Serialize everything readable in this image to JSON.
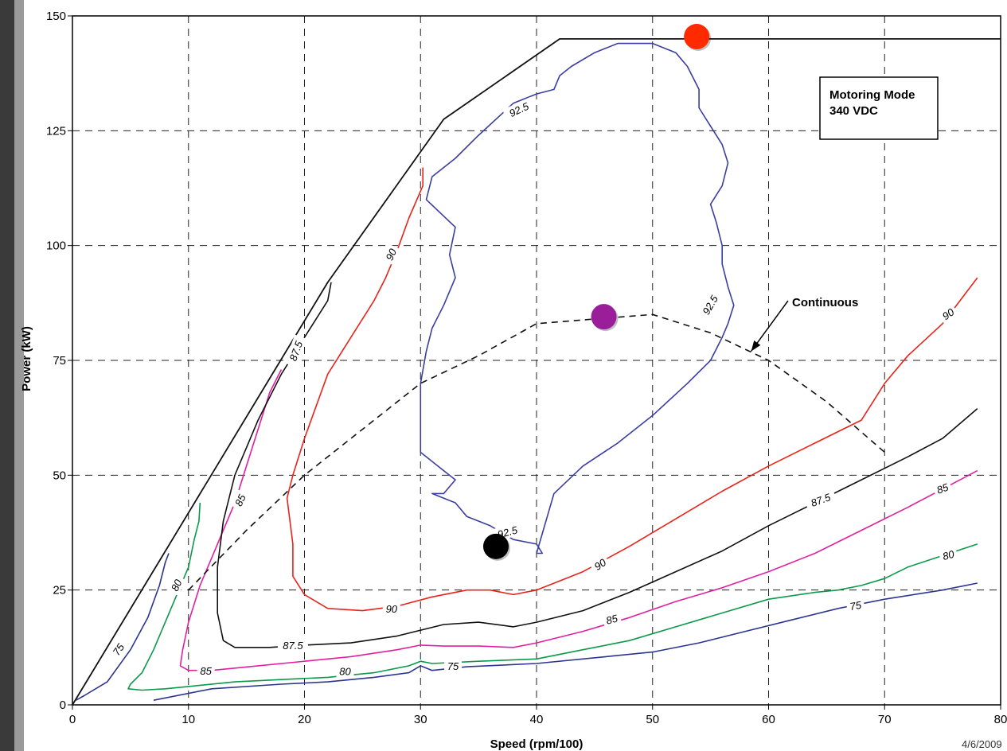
{
  "chart_data": {
    "type": "line",
    "title": "",
    "xlabel": "Speed (rpm/100)",
    "ylabel": "Power (kW)",
    "xlim": [
      0,
      80
    ],
    "ylim": [
      0,
      150
    ],
    "x_ticks": [
      0,
      10,
      20,
      30,
      40,
      50,
      60,
      70,
      80
    ],
    "y_ticks": [
      0,
      25,
      50,
      75,
      100,
      125,
      150
    ],
    "grid": true,
    "grid_style": "dashed",
    "legend_box": {
      "lines": [
        "Motoring Mode",
        "340 VDC"
      ],
      "placement": "top-right"
    },
    "annotation": {
      "text": "Continuous",
      "arrow_to": [
        58.5,
        77
      ]
    },
    "date": "4/6/2009",
    "colors": {
      "75": "#2b3590",
      "80": "#0a9a4a",
      "85": "#e020a0",
      "87.5": "#111111",
      "90": "#e8231a",
      "92.5": "#3a3ea0",
      "envelope": "#111111",
      "continuous": "#111111",
      "marker_red": "#ff2a00",
      "marker_purple": "#9a1d9a",
      "marker_black": "#000000"
    },
    "series": [
      {
        "name": "envelope",
        "style": "solid",
        "color_key": "envelope",
        "points": [
          [
            0,
            0
          ],
          [
            22,
            92
          ],
          [
            32,
            127.5
          ],
          [
            42,
            145
          ],
          [
            80,
            145
          ]
        ]
      },
      {
        "name": "75",
        "style": "solid",
        "color_key": "75",
        "points": [
          [
            0.3,
            1
          ],
          [
            1,
            2
          ],
          [
            3,
            5
          ],
          [
            5,
            12
          ],
          [
            6.5,
            19
          ],
          [
            7.5,
            26
          ],
          [
            8,
            31
          ],
          [
            8.3,
            33
          ],
          [
            null,
            null
          ],
          [
            7,
            1
          ],
          [
            12,
            3.5
          ],
          [
            18,
            4.5
          ],
          [
            22,
            5
          ],
          [
            26,
            6
          ],
          [
            29,
            7
          ],
          [
            30,
            8.5
          ],
          [
            31,
            7.5
          ],
          [
            34,
            8.3
          ],
          [
            40,
            9
          ],
          [
            46,
            10.5
          ],
          [
            50,
            11.5
          ],
          [
            54,
            13.5
          ],
          [
            58,
            16
          ],
          [
            62,
            18.5
          ],
          [
            66,
            21
          ],
          [
            70,
            23
          ],
          [
            75,
            25
          ],
          [
            78,
            26.5
          ]
        ],
        "labels": [
          {
            "text": "75",
            "x": 4,
            "y": 12,
            "angle": -55
          },
          {
            "text": "75",
            "x": 32.8,
            "y": 8.3,
            "angle": 0
          },
          {
            "text": "75",
            "x": 67.5,
            "y": 21.5,
            "angle": -10
          }
        ]
      },
      {
        "name": "80",
        "style": "solid",
        "color_key": "80",
        "points": [
          [
            11,
            44
          ],
          [
            10.9,
            40
          ],
          [
            10.5,
            36
          ],
          [
            10,
            30
          ],
          [
            9,
            24
          ],
          [
            8,
            18
          ],
          [
            7,
            12
          ],
          [
            6,
            7
          ],
          [
            5,
            4.5
          ],
          [
            4.8,
            3.5
          ],
          [
            6,
            3.2
          ],
          [
            8,
            3.5
          ],
          [
            10,
            4
          ],
          [
            14,
            5
          ],
          [
            18,
            5.5
          ],
          [
            22,
            6
          ],
          [
            26,
            7
          ],
          [
            29,
            8.5
          ],
          [
            30,
            9.5
          ],
          [
            31,
            9
          ],
          [
            35,
            9.5
          ],
          [
            40,
            10
          ],
          [
            44,
            12
          ],
          [
            48,
            14
          ],
          [
            52,
            17
          ],
          [
            56,
            20
          ],
          [
            60,
            23
          ],
          [
            64,
            24.5
          ],
          [
            66,
            25
          ],
          [
            68,
            26
          ],
          [
            70,
            27.5
          ],
          [
            72,
            30
          ],
          [
            75,
            32.5
          ],
          [
            78,
            35
          ]
        ],
        "labels": [
          {
            "text": "80",
            "x": 9,
            "y": 26,
            "angle": -65
          },
          {
            "text": "80",
            "x": 23.5,
            "y": 7.2,
            "angle": 0
          },
          {
            "text": "80",
            "x": 75.5,
            "y": 32.5,
            "angle": -15
          }
        ]
      },
      {
        "name": "85",
        "style": "solid",
        "color_key": "85",
        "points": [
          [
            18,
            73
          ],
          [
            17,
            68
          ],
          [
            16,
            60
          ],
          [
            15,
            52
          ],
          [
            14,
            44
          ],
          [
            13,
            38
          ],
          [
            12,
            32
          ],
          [
            11,
            26
          ],
          [
            10,
            18
          ],
          [
            9.5,
            12
          ],
          [
            9.3,
            8.5
          ],
          [
            10,
            7.5
          ],
          [
            12,
            7.5
          ],
          [
            16,
            8.5
          ],
          [
            20,
            9.5
          ],
          [
            24,
            10.5
          ],
          [
            28,
            12
          ],
          [
            30,
            13
          ],
          [
            32,
            12.8
          ],
          [
            35,
            12.8
          ],
          [
            38,
            12.5
          ],
          [
            40,
            13.5
          ],
          [
            44,
            16
          ],
          [
            48,
            19
          ],
          [
            52,
            22.5
          ],
          [
            56,
            25.5
          ],
          [
            60,
            29
          ],
          [
            64,
            33
          ],
          [
            68,
            38
          ],
          [
            72,
            43
          ],
          [
            75,
            47
          ],
          [
            78,
            51
          ]
        ],
        "labels": [
          {
            "text": "85",
            "x": 14.5,
            "y": 44.5,
            "angle": -65
          },
          {
            "text": "85",
            "x": 11.5,
            "y": 7.3,
            "angle": 0
          },
          {
            "text": "85",
            "x": 46.5,
            "y": 18.5,
            "angle": -15
          },
          {
            "text": "85",
            "x": 75,
            "y": 47,
            "angle": -20
          }
        ]
      },
      {
        "name": "87.5",
        "style": "solid",
        "color_key": "87.5",
        "points": [
          [
            22.3,
            92
          ],
          [
            22,
            88
          ],
          [
            20,
            80
          ],
          [
            18,
            72
          ],
          [
            16,
            62
          ],
          [
            14,
            50
          ],
          [
            13,
            40
          ],
          [
            12.5,
            30
          ],
          [
            12.5,
            20
          ],
          [
            13,
            14
          ],
          [
            14,
            12.5
          ],
          [
            17,
            12.5
          ],
          [
            20,
            13
          ],
          [
            24,
            13.5
          ],
          [
            28,
            15
          ],
          [
            32,
            17.5
          ],
          [
            35,
            18
          ],
          [
            38,
            17
          ],
          [
            40,
            18
          ],
          [
            44,
            20.5
          ],
          [
            48,
            24.5
          ],
          [
            52,
            29
          ],
          [
            56,
            33.5
          ],
          [
            60,
            39
          ],
          [
            64,
            44
          ],
          [
            68,
            49
          ],
          [
            72,
            54
          ],
          [
            75,
            58
          ],
          [
            78,
            64.5
          ]
        ],
        "labels": [
          {
            "text": "87.5",
            "x": 19.3,
            "y": 77,
            "angle": -70
          },
          {
            "text": "87.5",
            "x": 19,
            "y": 12.8,
            "angle": 0
          },
          {
            "text": "87.5",
            "x": 64.5,
            "y": 44.5,
            "angle": -20
          }
        ]
      },
      {
        "name": "90",
        "style": "solid",
        "color_key": "90",
        "points": [
          [
            30.2,
            117
          ],
          [
            30.2,
            113
          ],
          [
            29,
            106
          ],
          [
            28,
            99
          ],
          [
            27,
            93
          ],
          [
            26,
            88
          ],
          [
            24,
            80
          ],
          [
            22,
            72
          ],
          [
            21,
            65
          ],
          [
            20,
            58
          ],
          [
            19,
            50
          ],
          [
            18.5,
            45
          ],
          [
            19,
            35
          ],
          [
            19,
            28
          ],
          [
            20,
            24
          ],
          [
            22,
            21
          ],
          [
            25,
            20.5
          ],
          [
            28,
            21.5
          ],
          [
            31,
            23.5
          ],
          [
            34,
            25
          ],
          [
            36,
            25
          ],
          [
            38,
            24
          ],
          [
            40,
            25
          ],
          [
            44,
            29
          ],
          [
            48,
            34.5
          ],
          [
            52,
            40.5
          ],
          [
            56,
            46.5
          ],
          [
            60,
            52
          ],
          [
            64,
            57
          ],
          [
            68,
            62
          ],
          [
            70,
            70
          ],
          [
            72,
            76
          ],
          [
            75,
            83
          ],
          [
            78,
            93
          ]
        ],
        "labels": [
          {
            "text": "90",
            "x": 27.5,
            "y": 98,
            "angle": -65
          },
          {
            "text": "90",
            "x": 27.5,
            "y": 20.8,
            "angle": 0
          },
          {
            "text": "90",
            "x": 45.5,
            "y": 30.5,
            "angle": -35
          },
          {
            "text": "90",
            "x": 75.5,
            "y": 85,
            "angle": -35
          }
        ]
      },
      {
        "name": "92.5",
        "style": "solid",
        "color_key": "92.5",
        "points": [
          [
            40,
            33
          ],
          [
            41.5,
            46
          ],
          [
            44,
            52
          ],
          [
            47,
            57
          ],
          [
            50,
            63
          ],
          [
            53,
            70
          ],
          [
            55,
            75
          ],
          [
            56,
            80
          ],
          [
            56.5,
            83
          ],
          [
            57,
            87
          ],
          [
            56.5,
            91
          ],
          [
            56,
            96
          ],
          [
            56,
            100
          ],
          [
            55.5,
            105
          ],
          [
            55,
            109
          ],
          [
            56,
            113
          ],
          [
            56.5,
            118
          ],
          [
            56,
            122
          ],
          [
            55,
            126
          ],
          [
            54,
            130
          ],
          [
            54,
            134
          ],
          [
            53,
            139
          ],
          [
            52,
            142
          ],
          [
            50,
            144
          ],
          [
            47,
            144
          ],
          [
            45,
            142
          ],
          [
            43,
            139
          ],
          [
            42,
            137
          ],
          [
            41.5,
            134
          ],
          [
            40,
            133
          ],
          [
            38,
            131
          ],
          [
            35,
            124
          ],
          [
            33,
            119
          ],
          [
            31,
            115
          ],
          [
            30.5,
            110
          ],
          [
            33,
            104
          ],
          [
            32.5,
            98
          ],
          [
            33,
            93
          ],
          [
            32,
            87
          ],
          [
            31,
            82
          ],
          [
            30.5,
            77
          ],
          [
            30,
            70
          ],
          [
            30,
            64
          ],
          [
            30,
            58
          ],
          [
            30,
            55
          ],
          [
            32,
            51
          ],
          [
            33,
            49
          ],
          [
            32,
            46
          ],
          [
            31,
            46
          ],
          [
            33,
            44
          ],
          [
            34,
            41
          ],
          [
            36,
            39
          ],
          [
            38,
            36
          ],
          [
            40,
            35
          ],
          [
            40.5,
            33
          ],
          [
            40,
            33
          ]
        ],
        "labels": [
          {
            "text": "92.5",
            "x": 38.5,
            "y": 129.5,
            "angle": -25
          },
          {
            "text": "92.5",
            "x": 55,
            "y": 87,
            "angle": -60
          },
          {
            "text": "92.5",
            "x": 37.5,
            "y": 37.5,
            "angle": -15
          }
        ]
      },
      {
        "name": "Continuous",
        "style": "dashed",
        "color_key": "continuous",
        "points": [
          [
            10,
            25
          ],
          [
            15,
            38
          ],
          [
            20,
            50
          ],
          [
            25,
            60
          ],
          [
            30,
            70
          ],
          [
            35,
            76
          ],
          [
            40,
            83
          ],
          [
            45,
            84
          ],
          [
            50,
            85
          ],
          [
            55,
            81
          ],
          [
            60,
            75
          ],
          [
            65,
            66
          ],
          [
            70,
            55
          ]
        ]
      }
    ],
    "markers": [
      {
        "x": 53.8,
        "y": 145.5,
        "color_key": "marker_red"
      },
      {
        "x": 45.8,
        "y": 84.5,
        "color_key": "marker_purple"
      },
      {
        "x": 36.5,
        "y": 34.5,
        "color_key": "marker_black"
      }
    ]
  }
}
